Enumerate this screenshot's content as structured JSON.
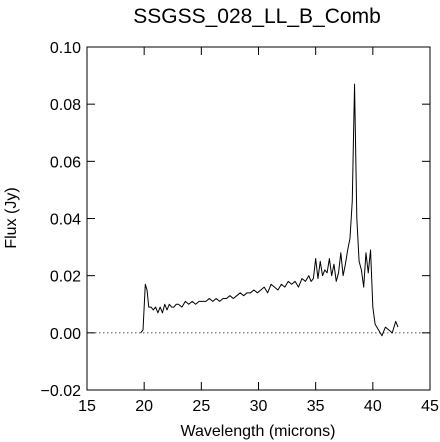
{
  "chart_data": {
    "type": "line",
    "title": "SSGSS_028_LL_B_Comb",
    "xlabel": "Wavelength (microns)",
    "ylabel": "Flux (Jy)",
    "xlim": [
      15,
      45
    ],
    "ylim": [
      -0.02,
      0.1
    ],
    "xticks": [
      15,
      20,
      25,
      30,
      35,
      40,
      45
    ],
    "xtick_labels": [
      "15",
      "20",
      "25",
      "30",
      "35",
      "40",
      "45"
    ],
    "yticks": [
      -0.02,
      0.0,
      0.02,
      0.04,
      0.06,
      0.08,
      0.1
    ],
    "ytick_labels": [
      "−0.02",
      "0.00",
      "0.02",
      "0.04",
      "0.06",
      "0.08",
      "0.10"
    ],
    "reference_line": {
      "y": 0.0,
      "x_range": [
        15,
        45
      ],
      "style": "dotted"
    },
    "grid": false,
    "series": [
      {
        "color": "#000000",
        "x": [
          19.7,
          19.9,
          20.1,
          20.25,
          20.4,
          20.6,
          20.8,
          21.0,
          21.2,
          21.4,
          21.6,
          21.8,
          22.0,
          22.2,
          22.4,
          22.6,
          22.8,
          23.0,
          23.3,
          23.6,
          23.9,
          24.2,
          24.5,
          24.8,
          25.1,
          25.4,
          25.7,
          26.0,
          26.3,
          26.6,
          26.9,
          27.2,
          27.5,
          27.8,
          28.1,
          28.4,
          28.7,
          29.0,
          29.3,
          29.6,
          29.9,
          30.2,
          30.5,
          30.8,
          31.1,
          31.4,
          31.7,
          32.0,
          32.3,
          32.6,
          32.9,
          33.2,
          33.5,
          33.8,
          34.1,
          34.4,
          34.6,
          34.8,
          35.0,
          35.2,
          35.4,
          35.6,
          35.8,
          36.0,
          36.2,
          36.4,
          36.6,
          36.8,
          37.0,
          37.2,
          37.4,
          37.6,
          37.8,
          38.0,
          38.2,
          38.4,
          38.6,
          38.8,
          39.0,
          39.2,
          39.4,
          39.6,
          39.8,
          40.0,
          40.2,
          40.5,
          40.8,
          41.1,
          41.4,
          41.7,
          42.0,
          42.2
        ],
        "y": [
          0.0,
          0.001,
          0.017,
          0.015,
          0.009,
          0.009,
          0.008,
          0.009,
          0.007,
          0.009,
          0.007,
          0.01,
          0.008,
          0.01,
          0.009,
          0.009,
          0.01,
          0.01,
          0.009,
          0.011,
          0.01,
          0.011,
          0.01,
          0.011,
          0.011,
          0.011,
          0.012,
          0.011,
          0.012,
          0.011,
          0.012,
          0.012,
          0.013,
          0.012,
          0.013,
          0.014,
          0.013,
          0.014,
          0.014,
          0.015,
          0.014,
          0.015,
          0.016,
          0.014,
          0.017,
          0.016,
          0.015,
          0.017,
          0.016,
          0.018,
          0.017,
          0.018,
          0.016,
          0.019,
          0.018,
          0.02,
          0.018,
          0.019,
          0.026,
          0.019,
          0.025,
          0.02,
          0.022,
          0.021,
          0.026,
          0.02,
          0.024,
          0.018,
          0.021,
          0.028,
          0.02,
          0.024,
          0.029,
          0.033,
          0.046,
          0.087,
          0.04,
          0.025,
          0.022,
          0.016,
          0.028,
          0.021,
          0.029,
          0.009,
          0.003,
          0.001,
          -0.001,
          0.002,
          0.001,
          0.0,
          0.004,
          0.002
        ]
      }
    ]
  }
}
